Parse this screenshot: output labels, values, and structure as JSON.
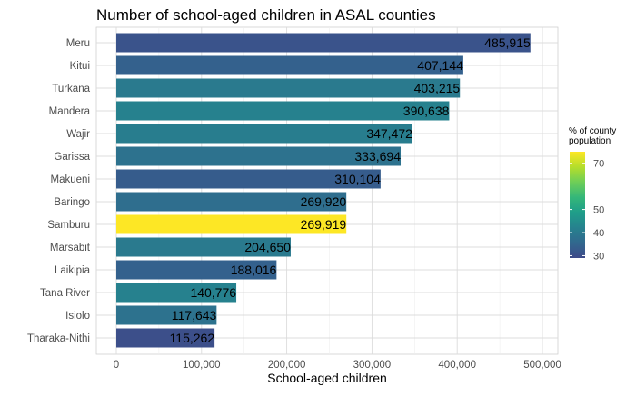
{
  "chart_data": {
    "type": "bar",
    "orientation": "horizontal",
    "title": "Number of school-aged children in ASAL counties",
    "xlabel": "School-aged children",
    "ylabel": "",
    "xlim": [
      0,
      500000
    ],
    "x_ticks": [
      0,
      100000,
      200000,
      300000,
      400000,
      500000
    ],
    "x_tick_labels": [
      "0",
      "100,000",
      "200,000",
      "300,000",
      "400,000",
      "500,000"
    ],
    "grid": true,
    "categories": [
      "Meru",
      "Kitui",
      "Turkana",
      "Mandera",
      "Wajir",
      "Garissa",
      "Makueni",
      "Baringo",
      "Samburu",
      "Marsabit",
      "Laikipia",
      "Tana River",
      "Isiolo",
      "Tharaka-Nithi"
    ],
    "values": [
      485915,
      407144,
      403215,
      390638,
      347472,
      333694,
      310104,
      269920,
      269919,
      204650,
      188016,
      140776,
      117643,
      115262
    ],
    "value_labels": [
      "485,915",
      "407,144",
      "403,215",
      "390,638",
      "347,472",
      "333,694",
      "310,104",
      "269,920",
      "269,919",
      "204,650",
      "188,016",
      "140,776",
      "117,643",
      "115,262"
    ],
    "fill_values": [
      31,
      34,
      40,
      42,
      41,
      38,
      33,
      37,
      75,
      40,
      34,
      42,
      38,
      30
    ],
    "colorbar": {
      "title_lines": [
        "% of county",
        "population"
      ],
      "ticks": [
        30,
        40,
        50,
        70
      ],
      "range": [
        29,
        75
      ],
      "colors": [
        "#3e4a89",
        "#31688e",
        "#26828e",
        "#1f9e89",
        "#35b779",
        "#6ece58",
        "#b5de2b",
        "#fde725"
      ],
      "placement": "right"
    }
  }
}
